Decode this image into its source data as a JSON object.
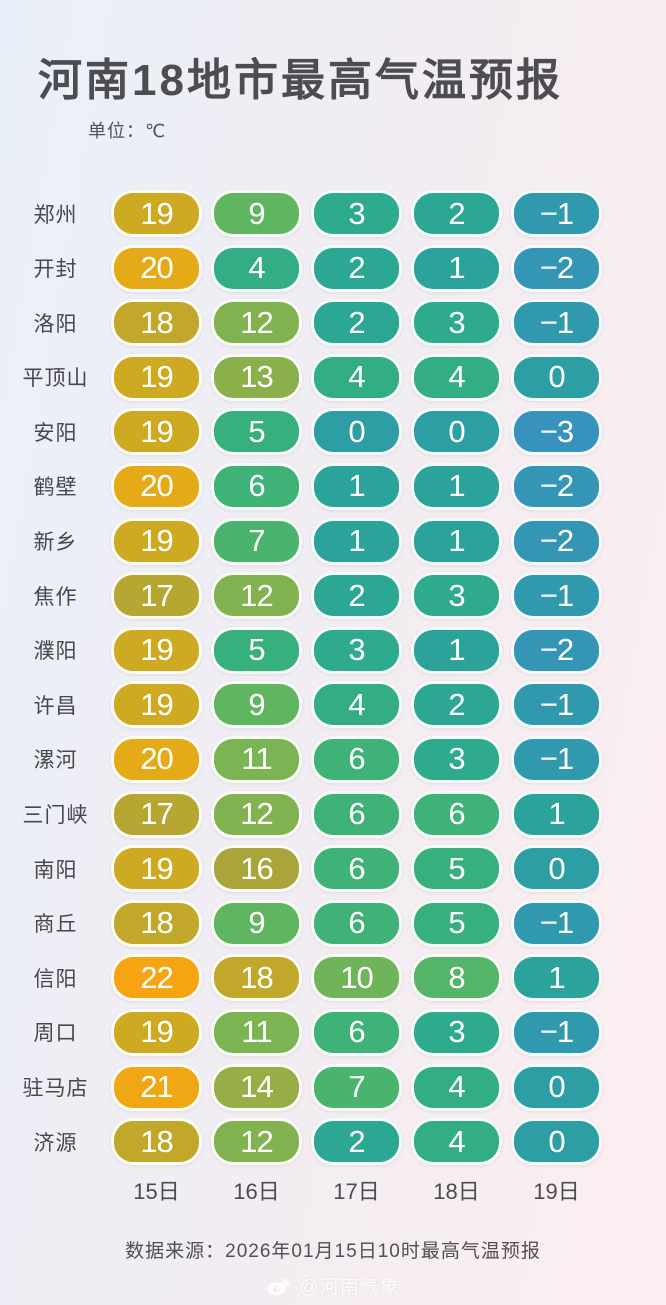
{
  "title": "河南18地市最高气温预报",
  "unit_label": "单位：℃",
  "footer": "数据来源：2026年01月15日10时最高气温预报",
  "watermark": {
    "icon": "weibo-icon",
    "text": "@河南气象"
  },
  "colors": {
    "background_left": "#eaf0f9",
    "background_right": "#fceef0",
    "heading_text": "#4c4c51",
    "body_text": "#47474c",
    "pill_text": "#ffffff",
    "pill_border": "#ffffff"
  },
  "color_scale": {
    "22": "#f7a413",
    "21": "#efa813",
    "20": "#e5aa17",
    "19": "#cea922",
    "18": "#c2a82a",
    "17": "#b6a632",
    "16": "#a9a53b",
    "14": "#96ae45",
    "13": "#8bb04b",
    "12": "#82b250",
    "11": "#7bb453",
    "10": "#6fb458",
    "9": "#60b560",
    "8": "#54b568",
    "7": "#4ab46f",
    "6": "#3eb277",
    "5": "#37b07e",
    "4": "#32ad86",
    "3": "#2eaa8d",
    "2": "#2ba794",
    "1": "#2ba39b",
    "0": "#2d9fa4",
    "-1": "#3199ad",
    "-2": "#3595b5",
    "-3": "#3892be"
  },
  "chart_data": {
    "type": "heatmap",
    "title": "河南18地市最高气温预报",
    "unit": "℃",
    "columns": [
      "15日",
      "16日",
      "17日",
      "18日",
      "19日"
    ],
    "rows": [
      {
        "city": "郑州",
        "temps": [
          19,
          9,
          3,
          2,
          -1
        ]
      },
      {
        "city": "开封",
        "temps": [
          20,
          4,
          2,
          1,
          -2
        ]
      },
      {
        "city": "洛阳",
        "temps": [
          18,
          12,
          2,
          3,
          -1
        ]
      },
      {
        "city": "平顶山",
        "temps": [
          19,
          13,
          4,
          4,
          0
        ]
      },
      {
        "city": "安阳",
        "temps": [
          19,
          5,
          0,
          0,
          -3
        ]
      },
      {
        "city": "鹤壁",
        "temps": [
          20,
          6,
          1,
          1,
          -2
        ]
      },
      {
        "city": "新乡",
        "temps": [
          19,
          7,
          1,
          1,
          -2
        ]
      },
      {
        "city": "焦作",
        "temps": [
          17,
          12,
          2,
          3,
          -1
        ]
      },
      {
        "city": "濮阳",
        "temps": [
          19,
          5,
          3,
          1,
          -2
        ]
      },
      {
        "city": "许昌",
        "temps": [
          19,
          9,
          4,
          2,
          -1
        ]
      },
      {
        "city": "漯河",
        "temps": [
          20,
          11,
          6,
          3,
          -1
        ]
      },
      {
        "city": "三门峡",
        "temps": [
          17,
          12,
          6,
          6,
          1
        ]
      },
      {
        "city": "南阳",
        "temps": [
          19,
          16,
          6,
          5,
          0
        ]
      },
      {
        "city": "商丘",
        "temps": [
          18,
          9,
          6,
          5,
          -1
        ]
      },
      {
        "city": "信阳",
        "temps": [
          22,
          18,
          10,
          8,
          1
        ]
      },
      {
        "city": "周口",
        "temps": [
          19,
          11,
          6,
          3,
          -1
        ]
      },
      {
        "city": "驻马店",
        "temps": [
          21,
          14,
          7,
          4,
          0
        ]
      },
      {
        "city": "济源",
        "temps": [
          18,
          12,
          2,
          4,
          0
        ]
      }
    ],
    "source": "数据来源：2026年01月15日10时最高气温预报",
    "legend_position": "none",
    "grid": false
  }
}
